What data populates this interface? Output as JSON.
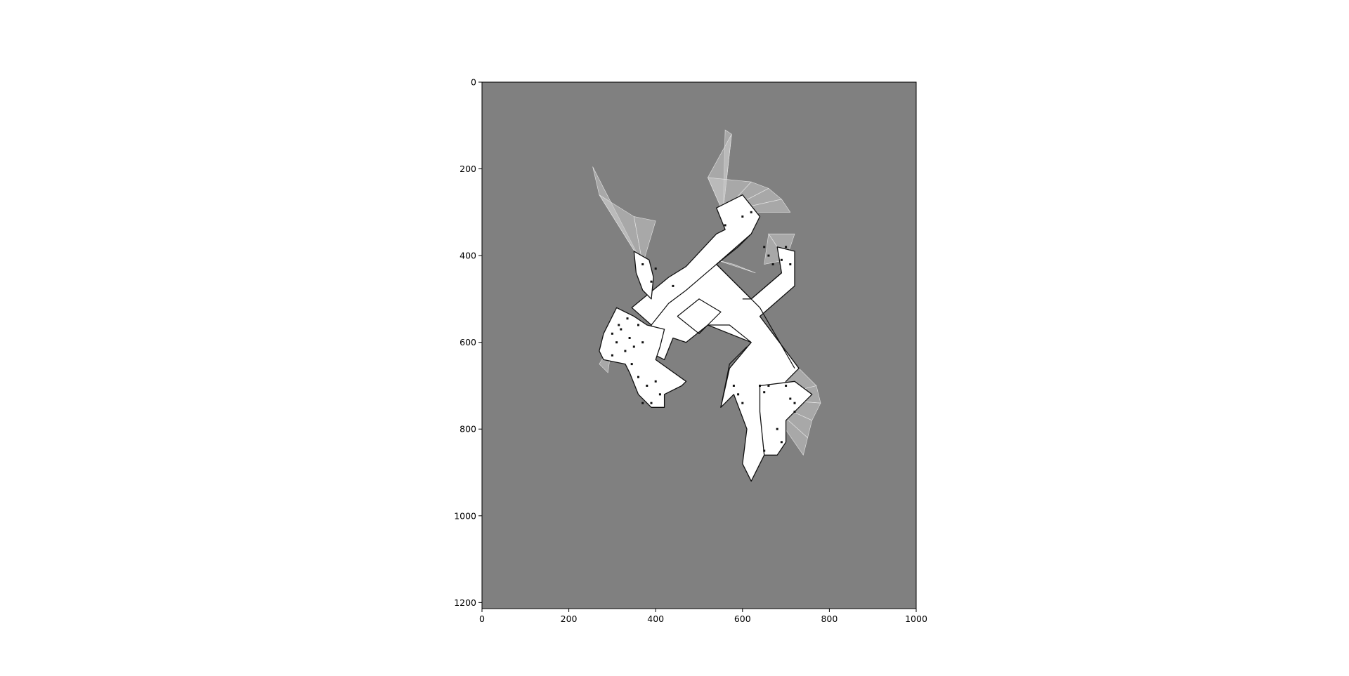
{
  "map": {
    "type": "occupancy-grid",
    "width_cells": 1000,
    "height_cells": 1214,
    "colors": {
      "unknown": "#808080",
      "free": "#ffffff",
      "occupied": "#111111",
      "ray": "#c8c8c8"
    },
    "xlim": [
      0,
      1000
    ],
    "ylim": [
      1214,
      0
    ],
    "x_ticks": [
      "0",
      "200",
      "400",
      "600",
      "800",
      "1000"
    ],
    "y_ticks": [
      "0",
      "200",
      "400",
      "600",
      "800",
      "1000",
      "1200"
    ],
    "free_regions": [
      [
        [
          345,
          520
        ],
        [
          430,
          450
        ],
        [
          470,
          425
        ],
        [
          540,
          350
        ],
        [
          560,
          340
        ],
        [
          540,
          290
        ],
        [
          600,
          260
        ],
        [
          640,
          310
        ],
        [
          620,
          350
        ],
        [
          540,
          420
        ],
        [
          620,
          500
        ],
        [
          690,
          440
        ],
        [
          680,
          380
        ],
        [
          720,
          390
        ],
        [
          720,
          470
        ],
        [
          640,
          540
        ],
        [
          730,
          660
        ],
        [
          700,
          690
        ],
        [
          650,
          860
        ],
        [
          620,
          920
        ],
        [
          600,
          880
        ],
        [
          610,
          800
        ],
        [
          580,
          720
        ],
        [
          550,
          750
        ],
        [
          570,
          660
        ],
        [
          620,
          600
        ],
        [
          520,
          560
        ],
        [
          470,
          600
        ],
        [
          440,
          590
        ],
        [
          420,
          640
        ],
        [
          400,
          630
        ],
        [
          390,
          560
        ]
      ],
      [
        [
          280,
          580
        ],
        [
          310,
          520
        ],
        [
          350,
          540
        ],
        [
          380,
          560
        ],
        [
          420,
          570
        ],
        [
          410,
          610
        ],
        [
          400,
          640
        ],
        [
          470,
          690
        ],
        [
          460,
          700
        ],
        [
          420,
          720
        ],
        [
          420,
          750
        ],
        [
          390,
          750
        ],
        [
          360,
          720
        ],
        [
          340,
          670
        ],
        [
          330,
          650
        ],
        [
          280,
          640
        ],
        [
          270,
          620
        ]
      ],
      [
        [
          350,
          390
        ],
        [
          385,
          410
        ],
        [
          395,
          450
        ],
        [
          390,
          500
        ],
        [
          370,
          480
        ],
        [
          355,
          440
        ]
      ],
      [
        [
          640,
          700
        ],
        [
          720,
          690
        ],
        [
          760,
          720
        ],
        [
          700,
          780
        ],
        [
          700,
          830
        ],
        [
          680,
          860
        ],
        [
          650,
          860
        ],
        [
          640,
          760
        ]
      ]
    ],
    "ray_fans": [
      {
        "origin": [
          370,
          420
        ],
        "tips": [
          [
            255,
            195
          ],
          [
            270,
            260
          ],
          [
            350,
            310
          ],
          [
            400,
            320
          ]
        ]
      },
      {
        "origin": [
          555,
          300
        ],
        "tips": [
          [
            560,
            110
          ],
          [
            575,
            120
          ],
          [
            520,
            220
          ],
          [
            620,
            230
          ],
          [
            660,
            245
          ],
          [
            690,
            270
          ],
          [
            710,
            300
          ]
        ]
      },
      {
        "origin": [
          660,
          350
        ],
        "tips": [
          [
            720,
            350
          ],
          [
            700,
            410
          ],
          [
            650,
            420
          ]
        ]
      },
      {
        "origin": [
          630,
          440
        ],
        "tips": [
          [
            540,
            410
          ],
          [
            580,
            420
          ]
        ]
      },
      {
        "origin": [
          650,
          730
        ],
        "tips": [
          [
            730,
            660
          ],
          [
            770,
            700
          ],
          [
            780,
            740
          ],
          [
            760,
            780
          ],
          [
            750,
            820
          ],
          [
            740,
            860
          ]
        ]
      },
      {
        "origin": [
          300,
          600
        ],
        "tips": [
          [
            270,
            650
          ],
          [
            290,
            670
          ]
        ]
      }
    ],
    "walls": [
      [
        [
          390,
          560
        ],
        [
          430,
          510
        ],
        [
          470,
          480
        ],
        [
          540,
          420
        ],
        [
          590,
          380
        ],
        [
          620,
          350
        ]
      ],
      [
        [
          540,
          420
        ],
        [
          600,
          480
        ],
        [
          640,
          520
        ],
        [
          720,
          660
        ]
      ],
      [
        [
          450,
          540
        ],
        [
          500,
          500
        ],
        [
          550,
          530
        ],
        [
          500,
          580
        ],
        [
          450,
          540
        ]
      ],
      [
        [
          610,
          610
        ],
        [
          570,
          650
        ],
        [
          560,
          700
        ],
        [
          550,
          750
        ]
      ],
      [
        [
          620,
          600
        ],
        [
          570,
          560
        ],
        [
          520,
          560
        ]
      ],
      [
        [
          600,
          500
        ],
        [
          620,
          500
        ],
        [
          690,
          440
        ]
      ]
    ],
    "obstacle_points": [
      [
        300,
        580
      ],
      [
        310,
        600
      ],
      [
        320,
        570
      ],
      [
        330,
        620
      ],
      [
        340,
        590
      ],
      [
        350,
        610
      ],
      [
        360,
        560
      ],
      [
        370,
        600
      ],
      [
        345,
        650
      ],
      [
        360,
        680
      ],
      [
        380,
        700
      ],
      [
        400,
        690
      ],
      [
        410,
        720
      ],
      [
        370,
        740
      ],
      [
        390,
        740
      ],
      [
        300,
        630
      ],
      [
        315,
        560
      ],
      [
        335,
        545
      ],
      [
        640,
        700
      ],
      [
        650,
        715
      ],
      [
        660,
        700
      ],
      [
        700,
        700
      ],
      [
        710,
        730
      ],
      [
        720,
        760
      ],
      [
        680,
        800
      ],
      [
        690,
        830
      ],
      [
        650,
        850
      ],
      [
        660,
        400
      ],
      [
        670,
        420
      ],
      [
        690,
        410
      ],
      [
        700,
        380
      ],
      [
        710,
        420
      ],
      [
        650,
        380
      ],
      [
        560,
        330
      ],
      [
        600,
        310
      ],
      [
        620,
        300
      ],
      [
        400,
        430
      ],
      [
        390,
        460
      ],
      [
        370,
        420
      ],
      [
        440,
        470
      ],
      [
        590,
        720
      ],
      [
        600,
        740
      ],
      [
        580,
        700
      ],
      [
        720,
        740
      ]
    ]
  }
}
